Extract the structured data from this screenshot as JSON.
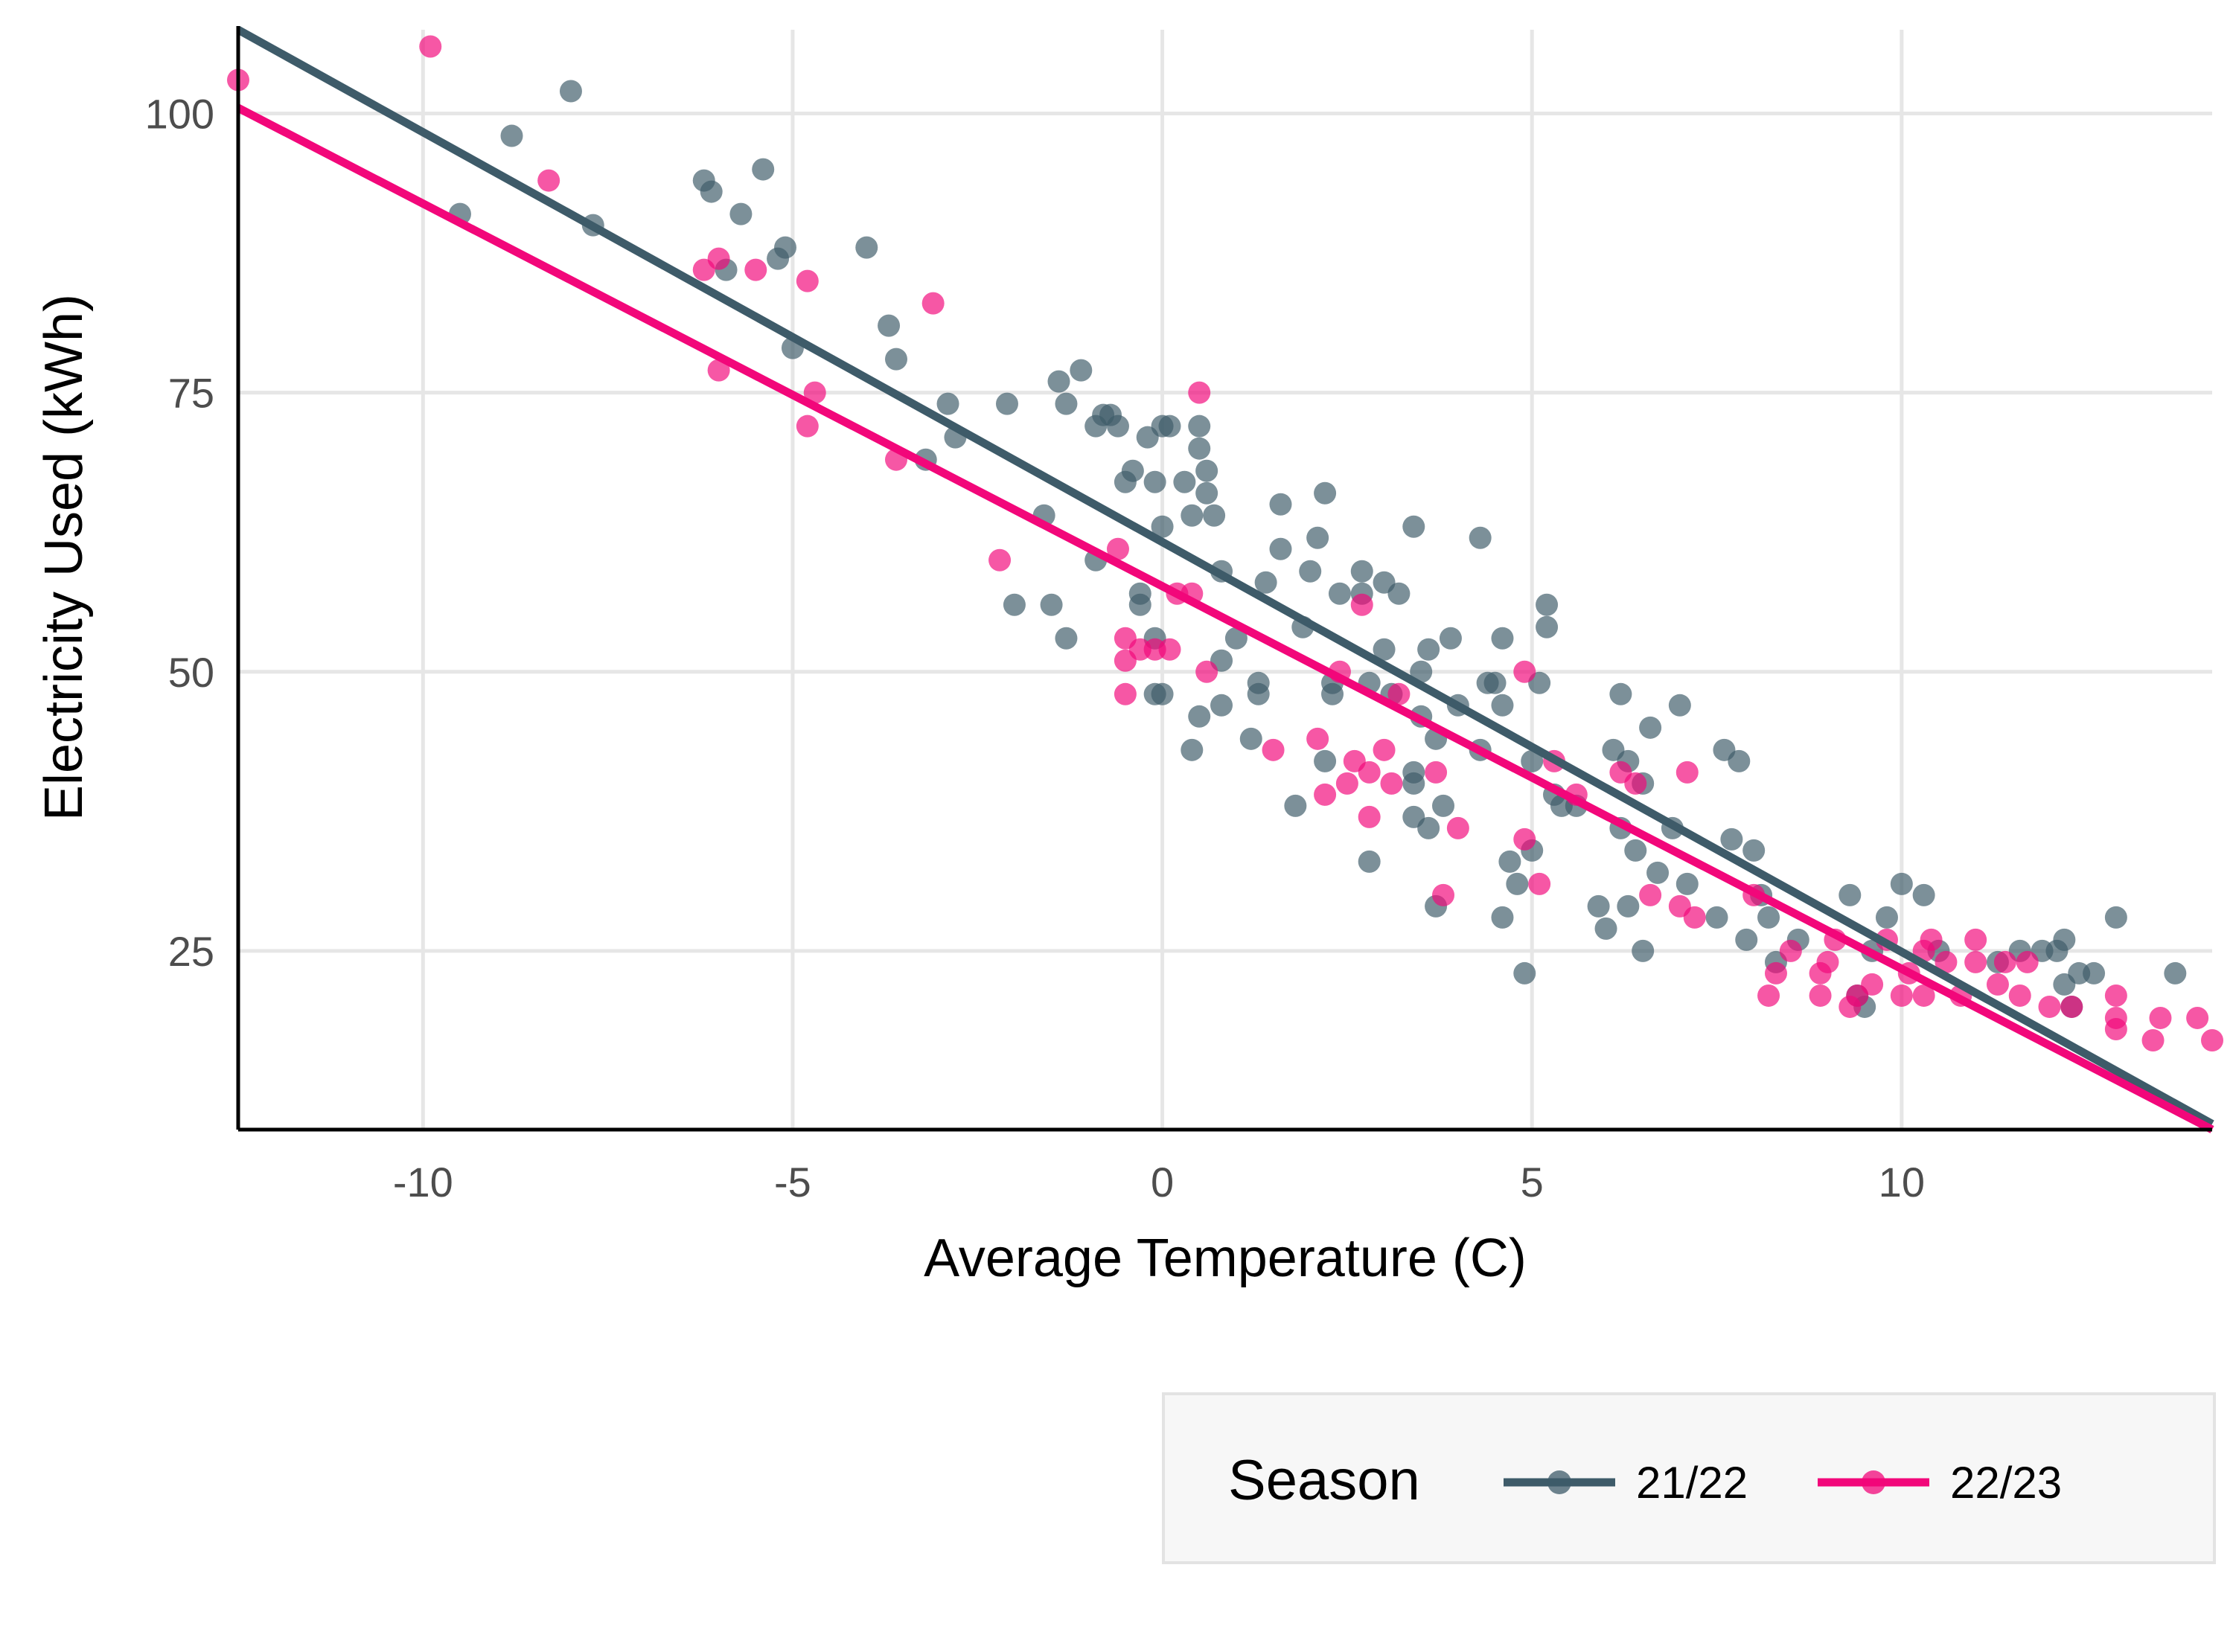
{
  "chart_data": {
    "type": "scatter",
    "title": "",
    "xlabel": "Average Temperature (C)",
    "ylabel": "Electricity Used (kWh)",
    "xlim": [
      -12.5,
      14.2
    ],
    "ylim": [
      9,
      107.5
    ],
    "x_ticks": [
      -10,
      -5,
      0,
      5,
      10
    ],
    "x_tick_labels": [
      "-10",
      "-5",
      "0",
      "5",
      "10"
    ],
    "y_ticks": [
      25,
      50,
      75,
      100
    ],
    "y_tick_labels": [
      "25",
      "50",
      "75",
      "100"
    ],
    "grid": true,
    "legend": {
      "title": "Season",
      "position": "bottom-right"
    },
    "series": [
      {
        "name": "21/22",
        "color": "#3E5B69",
        "trend": {
          "x": [
            -12.5,
            14.2
          ],
          "y": [
            107.5,
            9.5
          ]
        },
        "points": [
          [
            -9.5,
            91
          ],
          [
            -8.8,
            98
          ],
          [
            -8,
            102
          ],
          [
            -7.7,
            90
          ],
          [
            -6.2,
            94
          ],
          [
            -6.1,
            93
          ],
          [
            -5.9,
            86
          ],
          [
            -5.7,
            91
          ],
          [
            -5.4,
            95
          ],
          [
            -5.2,
            87
          ],
          [
            -5.1,
            88
          ],
          [
            -5,
            79
          ],
          [
            -4,
            88
          ],
          [
            -3.7,
            81
          ],
          [
            -3.6,
            78
          ],
          [
            -3.2,
            69
          ],
          [
            -2.9,
            74
          ],
          [
            -2.8,
            71
          ],
          [
            -2.1,
            74
          ],
          [
            -2,
            56
          ],
          [
            -1.6,
            64
          ],
          [
            -1.5,
            56
          ],
          [
            -1.4,
            76
          ],
          [
            -1.3,
            74
          ],
          [
            -1.3,
            53
          ],
          [
            -1.1,
            77
          ],
          [
            -0.9,
            60
          ],
          [
            -0.9,
            72
          ],
          [
            -0.8,
            73
          ],
          [
            -0.7,
            73
          ],
          [
            -0.6,
            72
          ],
          [
            -0.5,
            67
          ],
          [
            -0.4,
            68
          ],
          [
            -0.3,
            56
          ],
          [
            -0.3,
            57
          ],
          [
            -0.2,
            71
          ],
          [
            -0.1,
            67
          ],
          [
            -0.1,
            53
          ],
          [
            -0.1,
            48
          ],
          [
            0,
            72
          ],
          [
            0,
            63
          ],
          [
            0,
            48
          ],
          [
            0.1,
            72
          ],
          [
            0.3,
            67
          ],
          [
            0.4,
            64
          ],
          [
            0.4,
            43
          ],
          [
            0.5,
            72
          ],
          [
            0.5,
            70
          ],
          [
            0.6,
            68
          ],
          [
            0.6,
            66
          ],
          [
            0.5,
            46
          ],
          [
            0.7,
            64
          ],
          [
            0.8,
            59
          ],
          [
            0.8,
            51
          ],
          [
            0.8,
            47
          ],
          [
            1,
            53
          ],
          [
            1.2,
            44
          ],
          [
            1.3,
            48
          ],
          [
            1.3,
            49
          ],
          [
            1.4,
            58
          ],
          [
            1.6,
            65
          ],
          [
            1.6,
            61
          ],
          [
            1.8,
            38
          ],
          [
            1.9,
            54
          ],
          [
            2,
            59
          ],
          [
            2.1,
            62
          ],
          [
            2.2,
            42
          ],
          [
            2.2,
            66
          ],
          [
            2.3,
            48
          ],
          [
            2.3,
            49
          ],
          [
            2.4,
            57
          ],
          [
            2.7,
            57
          ],
          [
            2.7,
            59
          ],
          [
            2.8,
            49
          ],
          [
            2.8,
            33
          ],
          [
            3,
            58
          ],
          [
            3,
            52
          ],
          [
            3.1,
            48
          ],
          [
            3.2,
            57
          ],
          [
            3.4,
            63
          ],
          [
            3.4,
            41
          ],
          [
            3.4,
            40
          ],
          [
            3.4,
            37
          ],
          [
            3.5,
            50
          ],
          [
            3.5,
            46
          ],
          [
            3.6,
            52
          ],
          [
            3.6,
            36
          ],
          [
            3.7,
            44
          ],
          [
            3.7,
            29
          ],
          [
            3.8,
            38
          ],
          [
            3.9,
            53
          ],
          [
            4,
            47
          ],
          [
            4.3,
            62
          ],
          [
            4.3,
            43
          ],
          [
            4.4,
            49
          ],
          [
            4.5,
            49
          ],
          [
            4.6,
            53
          ],
          [
            4.6,
            47
          ],
          [
            4.6,
            28
          ],
          [
            4.7,
            33
          ],
          [
            4.8,
            31
          ],
          [
            4.9,
            23
          ],
          [
            5,
            42
          ],
          [
            5,
            34
          ],
          [
            5.1,
            49
          ],
          [
            5.2,
            56
          ],
          [
            5.2,
            54
          ],
          [
            5.3,
            39
          ],
          [
            5.4,
            38
          ],
          [
            5.6,
            38
          ],
          [
            5.9,
            29
          ],
          [
            6,
            27
          ],
          [
            6.1,
            43
          ],
          [
            6.2,
            48
          ],
          [
            6.2,
            36
          ],
          [
            6.3,
            42
          ],
          [
            6.3,
            29
          ],
          [
            6.4,
            34
          ],
          [
            6.5,
            25
          ],
          [
            6.5,
            40
          ],
          [
            6.6,
            45
          ],
          [
            6.7,
            32
          ],
          [
            6.9,
            36
          ],
          [
            7,
            47
          ],
          [
            7.1,
            31
          ],
          [
            7.5,
            28
          ],
          [
            7.6,
            43
          ],
          [
            7.7,
            35
          ],
          [
            7.8,
            42
          ],
          [
            7.9,
            26
          ],
          [
            8,
            34
          ],
          [
            8.1,
            30
          ],
          [
            8.2,
            28
          ],
          [
            8.3,
            24
          ],
          [
            8.6,
            26
          ],
          [
            9.3,
            30
          ],
          [
            9.4,
            21
          ],
          [
            9.5,
            20
          ],
          [
            9.6,
            25
          ],
          [
            9.8,
            28
          ],
          [
            10,
            31
          ],
          [
            10.3,
            30
          ],
          [
            10.5,
            25
          ],
          [
            11.3,
            24
          ],
          [
            11.6,
            25
          ],
          [
            11.9,
            25
          ],
          [
            12.1,
            25
          ],
          [
            12.2,
            26
          ],
          [
            12.2,
            22
          ],
          [
            12.3,
            20
          ],
          [
            12.4,
            23
          ],
          [
            12.6,
            23
          ],
          [
            12.9,
            28
          ],
          [
            13.7,
            23
          ]
        ]
      },
      {
        "name": "22/23",
        "color": "#F2077A",
        "trend": {
          "x": [
            -12.5,
            14.2
          ],
          "y": [
            100.5,
            9
          ]
        },
        "points": [
          [
            -12.5,
            103
          ],
          [
            -9.9,
            106
          ],
          [
            -8.3,
            94
          ],
          [
            -6.2,
            86
          ],
          [
            -6,
            87
          ],
          [
            -6,
            77
          ],
          [
            -5.5,
            86
          ],
          [
            -4.8,
            85
          ],
          [
            -4.8,
            72
          ],
          [
            -4.7,
            75
          ],
          [
            -3.6,
            69
          ],
          [
            -3.1,
            83
          ],
          [
            -2.2,
            60
          ],
          [
            -0.6,
            61
          ],
          [
            -0.5,
            53
          ],
          [
            -0.5,
            51
          ],
          [
            -0.5,
            48
          ],
          [
            -0.3,
            52
          ],
          [
            -0.1,
            52
          ],
          [
            0.1,
            52
          ],
          [
            0.2,
            57
          ],
          [
            0.4,
            57
          ],
          [
            0.5,
            75
          ],
          [
            0.6,
            50
          ],
          [
            1.5,
            43
          ],
          [
            2.1,
            44
          ],
          [
            2.2,
            39
          ],
          [
            2.4,
            50
          ],
          [
            2.5,
            40
          ],
          [
            2.6,
            42
          ],
          [
            2.7,
            56
          ],
          [
            2.8,
            41
          ],
          [
            2.8,
            37
          ],
          [
            3,
            43
          ],
          [
            3.1,
            40
          ],
          [
            3.2,
            48
          ],
          [
            3.7,
            41
          ],
          [
            3.8,
            30
          ],
          [
            4,
            36
          ],
          [
            4.9,
            50
          ],
          [
            4.9,
            35
          ],
          [
            5.1,
            31
          ],
          [
            5.3,
            42
          ],
          [
            5.6,
            39
          ],
          [
            6.2,
            41
          ],
          [
            6.4,
            40
          ],
          [
            6.6,
            30
          ],
          [
            7,
            29
          ],
          [
            7.1,
            41
          ],
          [
            7.2,
            28
          ],
          [
            8,
            30
          ],
          [
            8.2,
            21
          ],
          [
            8.3,
            23
          ],
          [
            8.5,
            25
          ],
          [
            8.9,
            23
          ],
          [
            8.9,
            21
          ],
          [
            9,
            24
          ],
          [
            9.1,
            26
          ],
          [
            9.3,
            20
          ],
          [
            9.4,
            21
          ],
          [
            9.6,
            22
          ],
          [
            9.8,
            26
          ],
          [
            10,
            21
          ],
          [
            10.1,
            23
          ],
          [
            10.3,
            21
          ],
          [
            10.3,
            25
          ],
          [
            10.4,
            26
          ],
          [
            10.6,
            24
          ],
          [
            10.8,
            21
          ],
          [
            11,
            26
          ],
          [
            11,
            24
          ],
          [
            11.3,
            22
          ],
          [
            11.4,
            24
          ],
          [
            11.6,
            21
          ],
          [
            11.7,
            24
          ],
          [
            12,
            20
          ],
          [
            12.3,
            20
          ],
          [
            12.9,
            21
          ],
          [
            12.9,
            19
          ],
          [
            12.9,
            18
          ],
          [
            13.4,
            17
          ],
          [
            13.5,
            19
          ],
          [
            14,
            19
          ],
          [
            14.2,
            17
          ]
        ]
      }
    ]
  }
}
